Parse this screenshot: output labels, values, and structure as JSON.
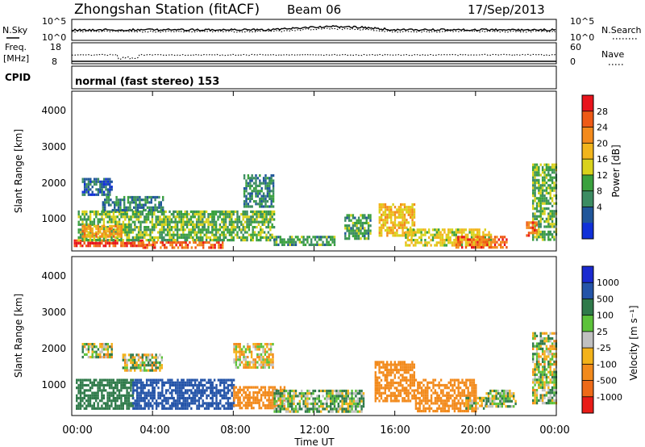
{
  "header": {
    "station": "Zhongshan Station (fitACF)",
    "beam": "Beam 06",
    "date": "17/Sep/2013"
  },
  "top_panels": {
    "nsky_label": "N.Sky",
    "nsky_ticks": [
      "10^5",
      "10^0"
    ],
    "nsearch_label": "N.Search",
    "nsearch_ticks": [
      "10^5",
      "10^0"
    ],
    "freq_label": "Freq.",
    "freq_unit": "[MHz]",
    "freq_ticks": [
      "18",
      "8"
    ],
    "nave_label": "Nave",
    "nave_ticks": [
      "60",
      "0"
    ],
    "cpid_label": "CPID",
    "cpid_text": "normal (fast stereo) 153"
  },
  "axes": {
    "xlabel": "Time UT",
    "ylabel": "Slant Range [km]",
    "xticks": [
      "00:00",
      "04:00",
      "08:00",
      "12:00",
      "16:00",
      "20:00",
      "00:00"
    ],
    "yticks": [
      "1000",
      "2000",
      "3000",
      "4000"
    ]
  },
  "colorbars": {
    "power": {
      "label": "Power [dB]",
      "ticks": [
        "28",
        "24",
        "20",
        "16",
        "12",
        "8",
        "4"
      ],
      "colors": [
        "#e8141c",
        "#ee5a16",
        "#f38a1c",
        "#f2b51c",
        "#d9d21c",
        "#3aa13e",
        "#3c8c62",
        "#20569a",
        "#1030d8"
      ]
    },
    "velocity": {
      "label": "Velocity [m s⁻¹]",
      "ticks": [
        "1000",
        "500",
        "100",
        "25",
        "-25",
        "-100",
        "-500",
        "-1000"
      ],
      "colors": [
        "#1a2ad0",
        "#2454a8",
        "#2f7a4a",
        "#5cc23a",
        "#c0c0c0",
        "#f3b21a",
        "#f28a1c",
        "#ee6a18",
        "#e81c18"
      ]
    }
  },
  "chart_data": [
    {
      "type": "heatmap",
      "title": "Power",
      "xlabel": "Time UT",
      "ylabel": "Slant Range [km]",
      "xlim": [
        0,
        24
      ],
      "ylim": [
        180,
        4600
      ],
      "colorbar": "Power [dB]",
      "blobs": [
        {
          "t": [
            0.1,
            3.5
          ],
          "r": [
            300,
            500
          ],
          "value": 28
        },
        {
          "t": [
            3.5,
            7.5
          ],
          "r": [
            300,
            450
          ],
          "value": 26
        },
        {
          "t": [
            0.3,
            10.0
          ],
          "r": [
            500,
            1300
          ],
          "value": 14
        },
        {
          "t": [
            0.5,
            2.5
          ],
          "r": [
            600,
            900
          ],
          "value": 22
        },
        {
          "t": [
            0.5,
            2.0
          ],
          "r": [
            1700,
            2200
          ],
          "value": 8
        },
        {
          "t": [
            1.5,
            4.5
          ],
          "r": [
            1300,
            1700
          ],
          "value": 10
        },
        {
          "t": [
            8.5,
            10.0
          ],
          "r": [
            1400,
            2300
          ],
          "value": 10
        },
        {
          "t": [
            10.0,
            13.0
          ],
          "r": [
            350,
            600
          ],
          "value": 12
        },
        {
          "t": [
            13.5,
            14.8
          ],
          "r": [
            500,
            1200
          ],
          "value": 12
        },
        {
          "t": [
            15.2,
            17.0
          ],
          "r": [
            600,
            1500
          ],
          "value": 20
        },
        {
          "t": [
            16.5,
            20.8
          ],
          "r": [
            300,
            800
          ],
          "value": 18
        },
        {
          "t": [
            19.0,
            21.5
          ],
          "r": [
            300,
            600
          ],
          "value": 26
        },
        {
          "t": [
            22.8,
            24.0
          ],
          "r": [
            500,
            2600
          ],
          "value": 14
        },
        {
          "t": [
            22.5,
            23.0
          ],
          "r": [
            600,
            1000
          ],
          "value": 26
        }
      ]
    },
    {
      "type": "heatmap",
      "title": "Velocity",
      "xlabel": "Time UT",
      "ylabel": "Slant Range [km]",
      "xlim": [
        0,
        24
      ],
      "ylim": [
        180,
        4600
      ],
      "colorbar": "Velocity [m s⁻¹]",
      "blobs": [
        {
          "t": [
            0.2,
            3.0
          ],
          "r": [
            350,
            1200
          ],
          "value": 300
        },
        {
          "t": [
            3.0,
            8.0
          ],
          "r": [
            350,
            1200
          ],
          "value": 800
        },
        {
          "t": [
            0.5,
            2.0
          ],
          "r": [
            1800,
            2200
          ],
          "value": 10
        },
        {
          "t": [
            2.5,
            4.5
          ],
          "r": [
            1400,
            1900
          ],
          "value": 10
        },
        {
          "t": [
            8.0,
            10.0
          ],
          "r": [
            1500,
            2200
          ],
          "value": -60
        },
        {
          "t": [
            8.0,
            10.5
          ],
          "r": [
            400,
            1000
          ],
          "value": -300
        },
        {
          "t": [
            10.0,
            14.5
          ],
          "r": [
            300,
            900
          ],
          "value": 80
        },
        {
          "t": [
            15.0,
            17.0
          ],
          "r": [
            600,
            1700
          ],
          "value": -300
        },
        {
          "t": [
            17.0,
            20.0
          ],
          "r": [
            300,
            1200
          ],
          "value": -300
        },
        {
          "t": [
            19.5,
            20.5
          ],
          "r": [
            400,
            700
          ],
          "value": -10
        },
        {
          "t": [
            20.5,
            22.0
          ],
          "r": [
            400,
            900
          ],
          "value": 60
        },
        {
          "t": [
            22.8,
            24.0
          ],
          "r": [
            500,
            2500
          ],
          "value": 20
        }
      ]
    }
  ]
}
